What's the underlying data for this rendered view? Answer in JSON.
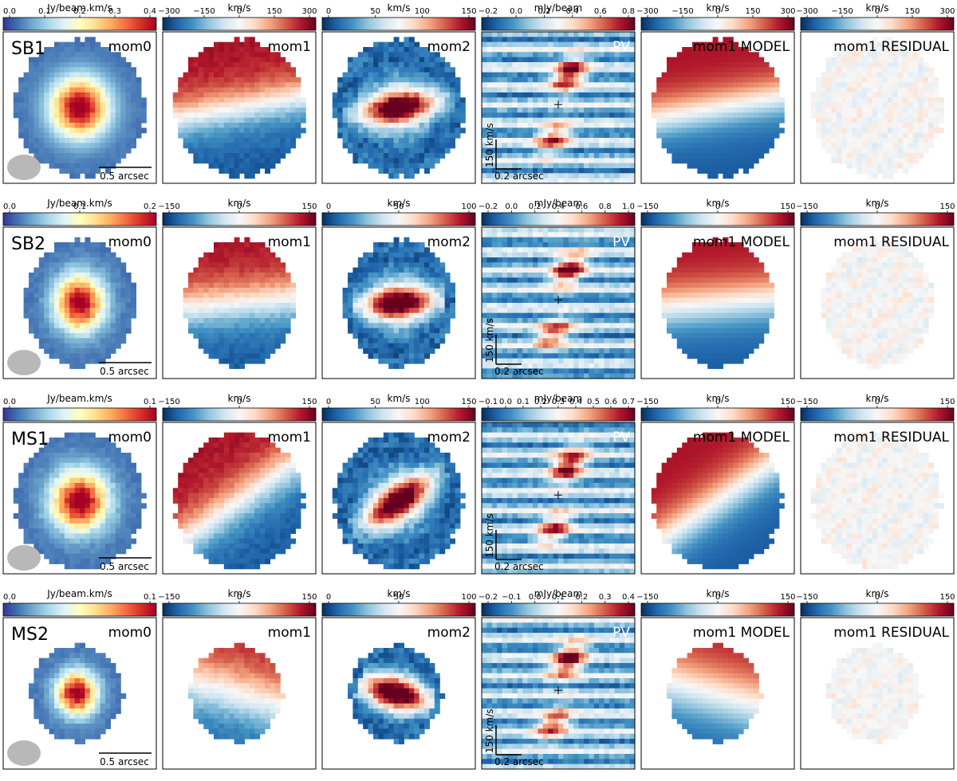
{
  "colors": {
    "rdylbu": [
      "#313695",
      "#4575b4",
      "#74add1",
      "#abd9e9",
      "#e0f3f8",
      "#ffffbf",
      "#fee090",
      "#fdae61",
      "#f46d43",
      "#d73027",
      "#a50026"
    ],
    "rdbu": [
      "#053061",
      "#2166ac",
      "#4393c3",
      "#92c5de",
      "#d1e5f0",
      "#f7f7f7",
      "#fddbc7",
      "#f4a582",
      "#d6604d",
      "#b2182b",
      "#67001f"
    ],
    "beam": "#b8b8b8",
    "frame": "#000000"
  },
  "chart_data": {
    "type": "heatmap",
    "column_types": [
      "mom0",
      "mom1",
      "mom2",
      "pv",
      "model",
      "residual"
    ],
    "panel_labels": {
      "mom0": "mom0",
      "mom1": "mom1",
      "mom2": "mom2",
      "pv": "PV",
      "model": "mom1 MODEL",
      "residual": "mom1 RESIDUAL"
    },
    "scalebar": {
      "spatial_label": "0.5 arcsec",
      "pv_x_label": "0.2 arcsec",
      "pv_y_label": "150 km/s"
    },
    "rows": [
      {
        "name": "SB1",
        "shape": {
          "rx": 0.43,
          "ry": 0.45,
          "cx": 0.5,
          "cy": 0.5
        },
        "rot_deg": 10,
        "disp_scale": 1.0,
        "colorbars": [
          {
            "label": "Jy/beam.km/s",
            "ticks": [
              "0.0",
              "0.1",
              "0.2",
              "0.3",
              "0.4"
            ],
            "cmap": "rdylbu"
          },
          {
            "label": "km/s",
            "ticks": [
              "−300",
              "−150",
              "0",
              "150",
              "300"
            ],
            "cmap": "rdbu"
          },
          {
            "label": "km/s",
            "ticks": [
              "0",
              "50",
              "100",
              "150"
            ],
            "cmap": "rdbu"
          },
          {
            "label": "mJy/beam",
            "ticks": [
              "−0.2",
              "0.0",
              "0.2",
              "0.4",
              "0.6",
              "0.8"
            ],
            "cmap": "rdbu"
          },
          {
            "label": "km/s",
            "ticks": [
              "−300",
              "−150",
              "0",
              "150",
              "300"
            ],
            "cmap": "rdbu"
          },
          {
            "label": "km/s",
            "ticks": [
              "−300",
              "−150",
              "0",
              "150",
              "300"
            ],
            "cmap": "rdbu"
          }
        ]
      },
      {
        "name": "SB2",
        "shape": {
          "rx": 0.36,
          "ry": 0.42,
          "cx": 0.5,
          "cy": 0.5
        },
        "rot_deg": 5,
        "disp_scale": 0.9,
        "colorbars": [
          {
            "label": "Jy/beam.km/s",
            "ticks": [
              "0.0",
              "0.1",
              "0.2"
            ],
            "cmap": "rdylbu"
          },
          {
            "label": "km/s",
            "ticks": [
              "−150",
              "0",
              "150"
            ],
            "cmap": "rdbu"
          },
          {
            "label": "km/s",
            "ticks": [
              "0",
              "50",
              "100"
            ],
            "cmap": "rdbu"
          },
          {
            "label": "mJy/beam",
            "ticks": [
              "−0.2",
              "0.0",
              "0.2",
              "0.4",
              "0.6",
              "0.8",
              "1.0"
            ],
            "cmap": "rdbu"
          },
          {
            "label": "km/s",
            "ticks": [
              "−150",
              "0",
              "150"
            ],
            "cmap": "rdbu"
          },
          {
            "label": "km/s",
            "ticks": [
              "−150",
              "0",
              "150"
            ],
            "cmap": "rdbu"
          }
        ]
      },
      {
        "name": "MS1",
        "shape": {
          "rx": 0.42,
          "ry": 0.45,
          "cx": 0.5,
          "cy": 0.52
        },
        "rot_deg": 35,
        "disp_scale": 1.0,
        "colorbars": [
          {
            "label": "Jy/beam.km/s",
            "ticks": [
              "0.0",
              "0.1"
            ],
            "cmap": "rdylbu"
          },
          {
            "label": "km/s",
            "ticks": [
              "−150",
              "0",
              "150"
            ],
            "cmap": "rdbu"
          },
          {
            "label": "km/s",
            "ticks": [
              "0",
              "50",
              "100",
              "150"
            ],
            "cmap": "rdbu"
          },
          {
            "label": "mJy/beam",
            "ticks": [
              "−0.1",
              "0.0",
              "0.1",
              "0.2",
              "0.3",
              "0.4",
              "0.5",
              "0.6",
              "0.7"
            ],
            "cmap": "rdbu"
          },
          {
            "label": "km/s",
            "ticks": [
              "−150",
              "0",
              "150"
            ],
            "cmap": "rdbu"
          },
          {
            "label": "km/s",
            "ticks": [
              "−150",
              "0",
              "150"
            ],
            "cmap": "rdbu"
          }
        ]
      },
      {
        "name": "MS2",
        "shape": {
          "rx": 0.3,
          "ry": 0.32,
          "cx": 0.48,
          "cy": 0.5
        },
        "rot_deg": -15,
        "disp_scale": 0.7,
        "colorbars": [
          {
            "label": "Jy/beam.km/s",
            "ticks": [
              "0.0",
              "0.1"
            ],
            "cmap": "rdylbu"
          },
          {
            "label": "km/s",
            "ticks": [
              "−150",
              "0",
              "150"
            ],
            "cmap": "rdbu"
          },
          {
            "label": "km/s",
            "ticks": [
              "0",
              "50",
              "100"
            ],
            "cmap": "rdbu"
          },
          {
            "label": "mJy/beam",
            "ticks": [
              "−0.2",
              "−0.1",
              "0.0",
              "0.1",
              "0.2",
              "0.3",
              "0.4"
            ],
            "cmap": "rdbu"
          },
          {
            "label": "km/s",
            "ticks": [
              "−150",
              "0",
              "150"
            ],
            "cmap": "rdbu"
          },
          {
            "label": "km/s",
            "ticks": [
              "−150",
              "0",
              "150"
            ],
            "cmap": "rdbu"
          }
        ]
      }
    ]
  }
}
